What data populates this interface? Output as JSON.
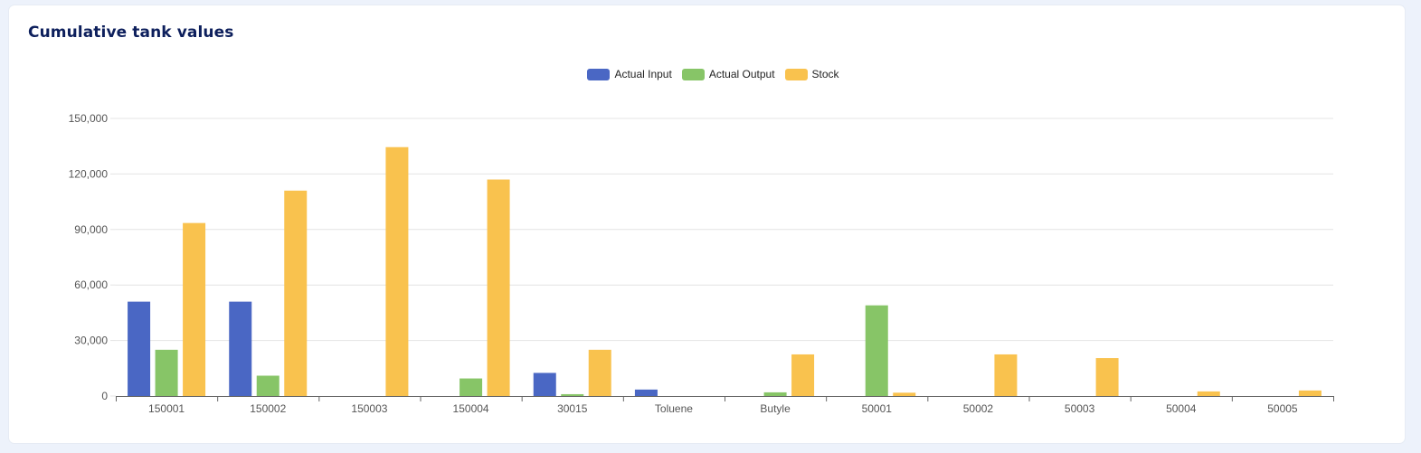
{
  "card": {
    "title": "Cumulative tank values"
  },
  "colors": {
    "actual_input": "#4a67c4",
    "actual_output": "#87c567",
    "stock": "#f9c24e",
    "grid": "#e4e4e4",
    "axis": "#666666",
    "page_bg": "#edf2fb"
  },
  "chart_data": {
    "type": "bar",
    "categories": [
      "150001",
      "150002",
      "150003",
      "150004",
      "30015",
      "Toluene",
      "Butyle",
      "50001",
      "50002",
      "50003",
      "50004",
      "50005"
    ],
    "series": [
      {
        "name": "Actual Input",
        "color": "#4a67c4",
        "values": [
          51000,
          51000,
          0,
          0,
          12500,
          3500,
          0,
          0,
          0,
          0,
          0,
          0
        ]
      },
      {
        "name": "Actual Output",
        "color": "#87c567",
        "values": [
          25000,
          11000,
          0,
          9500,
          1000,
          0,
          2000,
          49000,
          0,
          0,
          0,
          0
        ]
      },
      {
        "name": "Stock",
        "color": "#f9c24e",
        "values": [
          93500,
          111000,
          134500,
          117000,
          25000,
          0,
          22500,
          1800,
          22500,
          20500,
          2500,
          3000
        ]
      }
    ],
    "yticks": [
      "0",
      "30,000",
      "60,000",
      "90,000",
      "120,000",
      "150,000"
    ],
    "ylim": [
      0,
      150000
    ],
    "grid": true,
    "legend_position": "top-center"
  }
}
